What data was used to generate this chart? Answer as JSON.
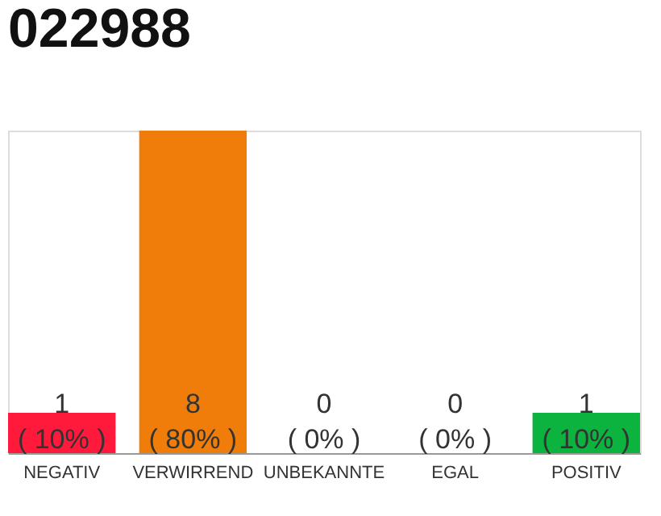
{
  "chart_data": {
    "type": "bar",
    "title": "022988",
    "categories": [
      "NEGATIV",
      "VERWIRREND",
      "UNBEKANNTE",
      "EGAL",
      "POSITIV"
    ],
    "values": [
      1,
      8,
      0,
      0,
      1
    ],
    "colors": [
      "#ff1a3c",
      "#f07d0a",
      "#9e9e9e",
      "#9e9e9e",
      "#0db33f"
    ],
    "value_labels": [
      "1 ( 10% )",
      "8 ( 80% )",
      "0 ( 0% )",
      "0 ( 0% )",
      "1 ( 10% )"
    ],
    "tick_labels": "x",
    "grid": false
  }
}
